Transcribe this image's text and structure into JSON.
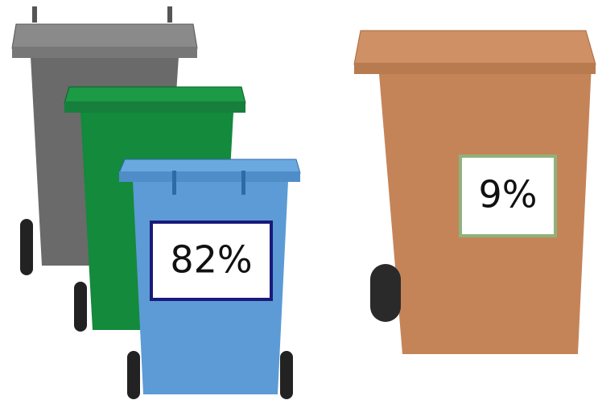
{
  "bins": [
    {
      "label": "82%"
    },
    {
      "label": "9%"
    }
  ]
}
